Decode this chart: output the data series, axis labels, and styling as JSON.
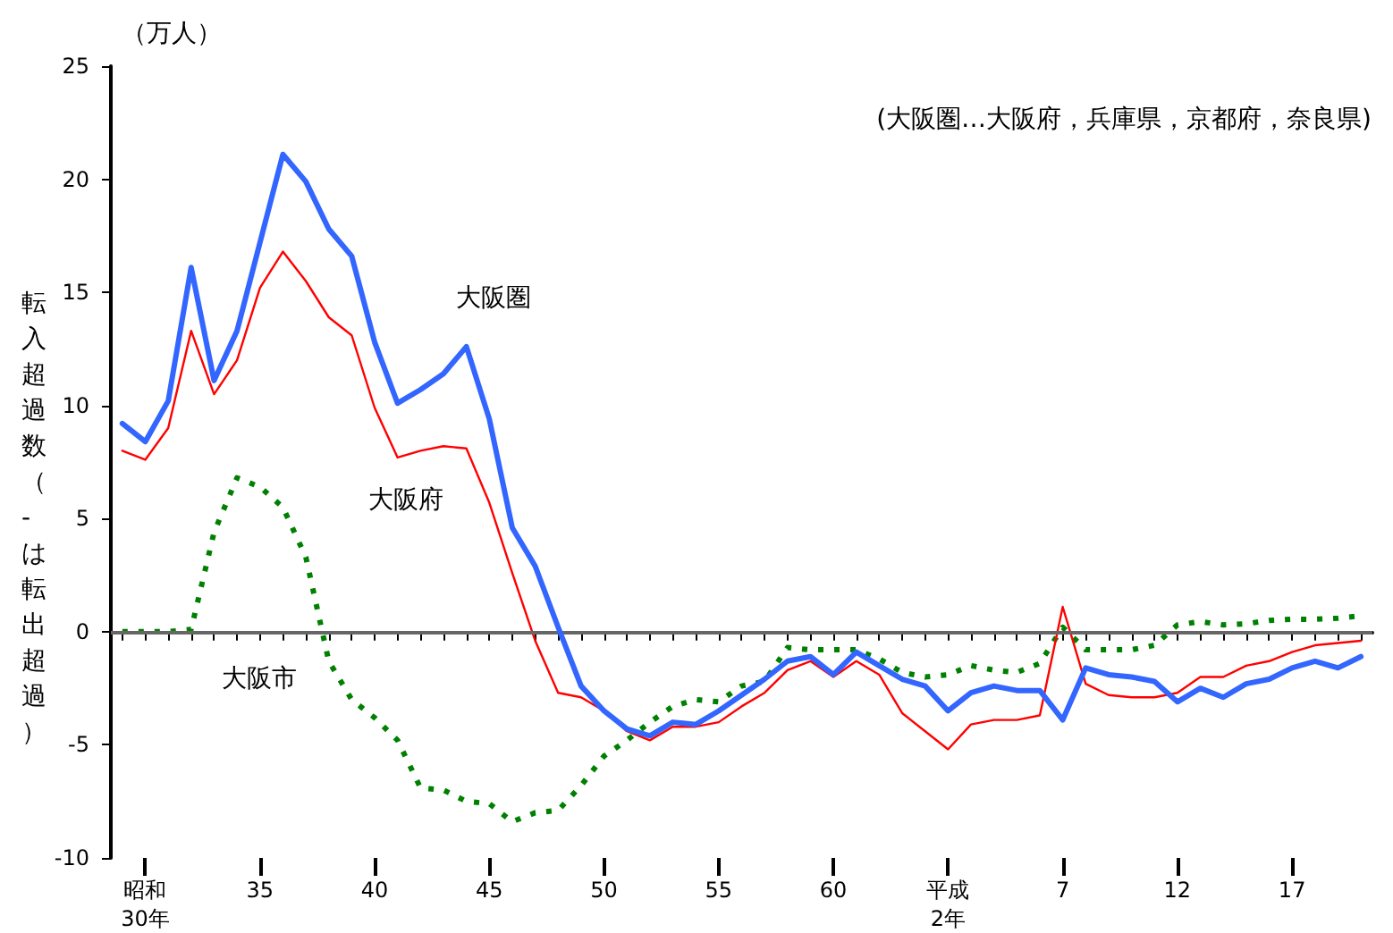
{
  "chart_data": {
    "type": "line",
    "ylabel": "転入超過数（-は転出超過）",
    "annotations": [
      "（万人）",
      "(大阪圏…大阪府，兵庫県，京都府，奈良県)"
    ],
    "categories": [
      null,
      "昭和30年",
      null,
      null,
      null,
      null,
      "35",
      null,
      null,
      null,
      null,
      "40",
      null,
      null,
      null,
      null,
      "45",
      null,
      null,
      null,
      null,
      "50",
      null,
      null,
      null,
      null,
      "55",
      null,
      null,
      null,
      null,
      "60",
      null,
      null,
      null,
      null,
      "平成2年",
      null,
      null,
      null,
      null,
      "7",
      null,
      null,
      null,
      null,
      "12",
      null,
      null,
      null,
      null,
      "17",
      null,
      null,
      null
    ],
    "series": [
      {
        "name": "大阪圏",
        "color": "#3366ff",
        "values": [
          9.2,
          8.4,
          10.2,
          16.1,
          11.1,
          13.3,
          17.2,
          21.1,
          19.9,
          17.8,
          16.6,
          12.8,
          10.1,
          10.7,
          11.4,
          12.6,
          9.4,
          4.6,
          2.9,
          0.2,
          -2.4,
          -3.5,
          -4.3,
          -4.6,
          -4.0,
          -4.1,
          -3.5,
          -2.8,
          -2.1,
          -1.3,
          -1.1,
          -1.9,
          -0.9,
          -1.5,
          -2.1,
          -2.4,
          -3.5,
          -2.7,
          -2.4,
          -2.6,
          -2.6,
          -3.9,
          -1.6,
          -1.9,
          -2.0,
          -2.2,
          -3.1,
          -2.5,
          -2.9,
          -2.3,
          -2.1,
          -1.6,
          -1.3,
          -1.6,
          -1.1
        ]
      },
      {
        "name": "大阪府",
        "color": "#ff0000",
        "values": [
          8.0,
          7.6,
          9.0,
          13.3,
          10.5,
          12.0,
          15.2,
          16.8,
          15.5,
          13.9,
          13.1,
          9.9,
          7.7,
          8.0,
          8.2,
          8.1,
          5.7,
          2.6,
          -0.4,
          -2.7,
          -2.9,
          -3.5,
          -4.4,
          -4.8,
          -4.2,
          -4.2,
          -4.0,
          -3.3,
          -2.7,
          -1.7,
          -1.3,
          -2.0,
          -1.3,
          -1.9,
          -3.6,
          -4.4,
          -5.2,
          -4.1,
          -3.9,
          -3.9,
          -3.7,
          1.1,
          -2.3,
          -2.8,
          -2.9,
          -2.9,
          -2.7,
          -2.0,
          -2.0,
          -1.5,
          -1.3,
          -0.9,
          -0.6,
          -0.5,
          -0.4
        ]
      },
      {
        "name": "大阪市",
        "color": "#008000",
        "line_style": "dotted",
        "values": [
          0.0,
          0.0,
          0.0,
          0.1,
          4.4,
          6.8,
          6.4,
          5.5,
          3.3,
          -1.3,
          -3.0,
          -3.8,
          -4.8,
          -6.9,
          -7.0,
          -7.5,
          -7.6,
          -8.4,
          -8.0,
          -7.9,
          -6.8,
          -5.5,
          -4.8,
          -4.0,
          -3.3,
          -3.0,
          -3.1,
          -2.4,
          -2.2,
          -0.7,
          -0.8,
          -0.8,
          -0.8,
          -1.2,
          -1.8,
          -2.0,
          -1.9,
          -1.5,
          -1.7,
          -1.8,
          -1.4,
          0.2,
          -0.8,
          -0.8,
          -0.8,
          -0.6,
          0.3,
          0.45,
          0.3,
          0.35,
          0.5,
          0.55,
          0.55,
          0.6,
          0.7
        ]
      }
    ],
    "ylim": [
      -10,
      25
    ],
    "yticks": [
      -10,
      -5,
      0,
      5,
      10,
      15,
      20,
      25
    ],
    "ref_lines": [
      {
        "axis": "y",
        "value": 0,
        "color": "#666666"
      }
    ],
    "grid": false,
    "legend": false
  }
}
